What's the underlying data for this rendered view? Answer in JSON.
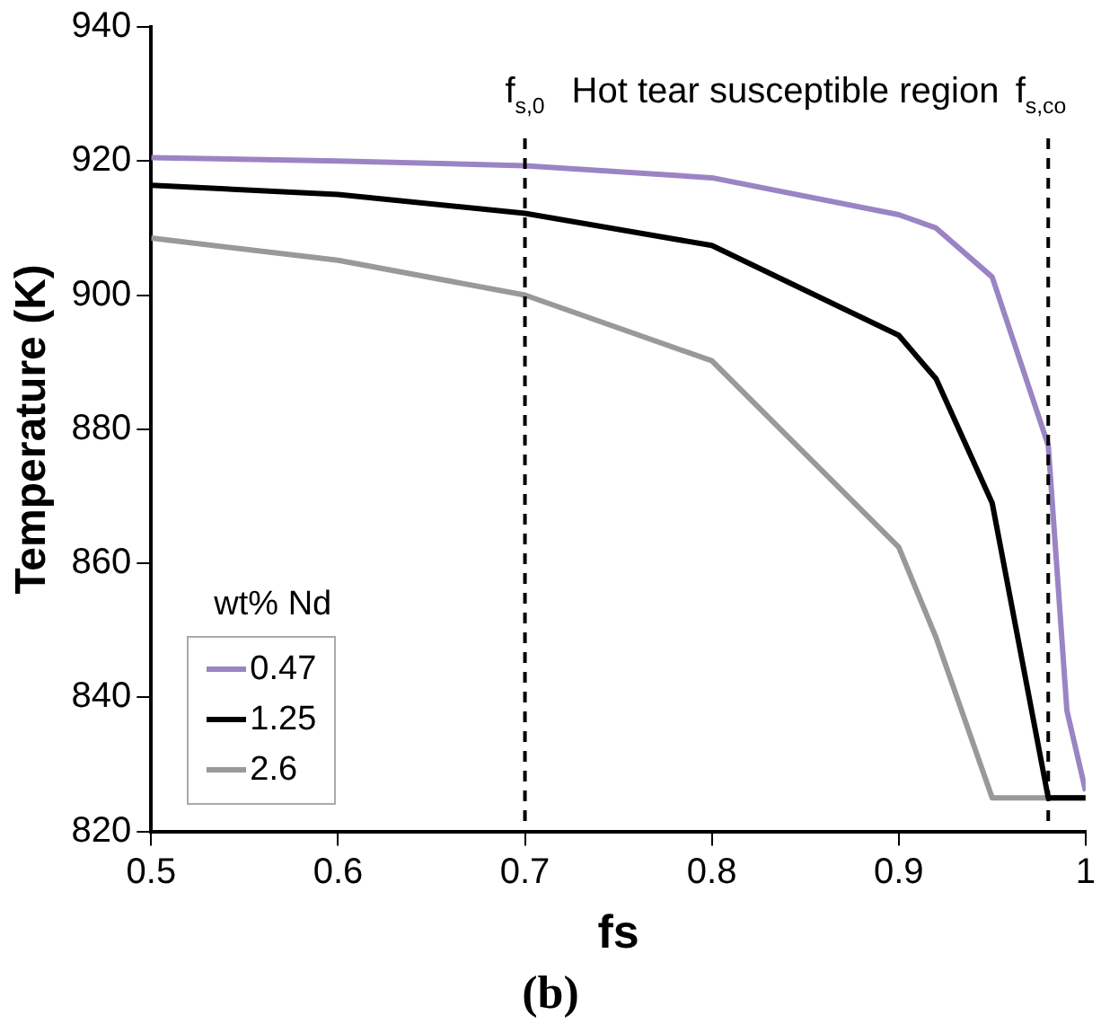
{
  "chart_data": {
    "type": "line",
    "xlabel": "fs",
    "ylabel": "Temperature (K)",
    "legend_title": "wt% Nd",
    "legend": "bottom left",
    "grid": false,
    "marker": "none",
    "line_style": "solid",
    "xlim": [
      0.5,
      1
    ],
    "xticks": [
      0.5,
      0.6,
      0.7,
      0.8,
      0.9,
      1
    ],
    "ylim": [
      820,
      940
    ],
    "yticks": [
      820,
      840,
      860,
      880,
      900,
      920,
      940
    ],
    "series": [
      {
        "name": "0.47",
        "color": "#9b84c4",
        "x": [
          0.5,
          0.6,
          0.7,
          0.8,
          0.9,
          0.92,
          0.95,
          0.98,
          0.99,
          1
        ],
        "values": [
          920.5,
          920,
          919.3,
          917.5,
          912,
          910,
          902.7,
          877.6,
          838,
          826
        ]
      },
      {
        "name": "1.25",
        "color": "#000000",
        "x": [
          0.5,
          0.6,
          0.7,
          0.8,
          0.9,
          0.92,
          0.95,
          0.98,
          1
        ],
        "values": [
          916.4,
          915,
          912.2,
          907.4,
          894,
          887.5,
          869,
          825,
          825
        ]
      },
      {
        "name": "2.6",
        "color": "#999999",
        "x": [
          0.5,
          0.6,
          0.7,
          0.8,
          0.9,
          0.92,
          0.95,
          1
        ],
        "values": [
          908.5,
          905.2,
          900,
          890.2,
          862.4,
          848.9,
          825,
          825
        ]
      }
    ],
    "ref_lines": [
      {
        "axis": "x",
        "value": 0.7,
        "label": "f$_{s,0}$",
        "line_style": "dashed",
        "color": "#000000"
      },
      {
        "axis": "x",
        "value": 0.98,
        "label": "f$_{s,co}$",
        "line_style": "dashed",
        "color": "#000000"
      }
    ],
    "annotations": [
      "Hot tear susceptible region",
      "(b)"
    ]
  }
}
